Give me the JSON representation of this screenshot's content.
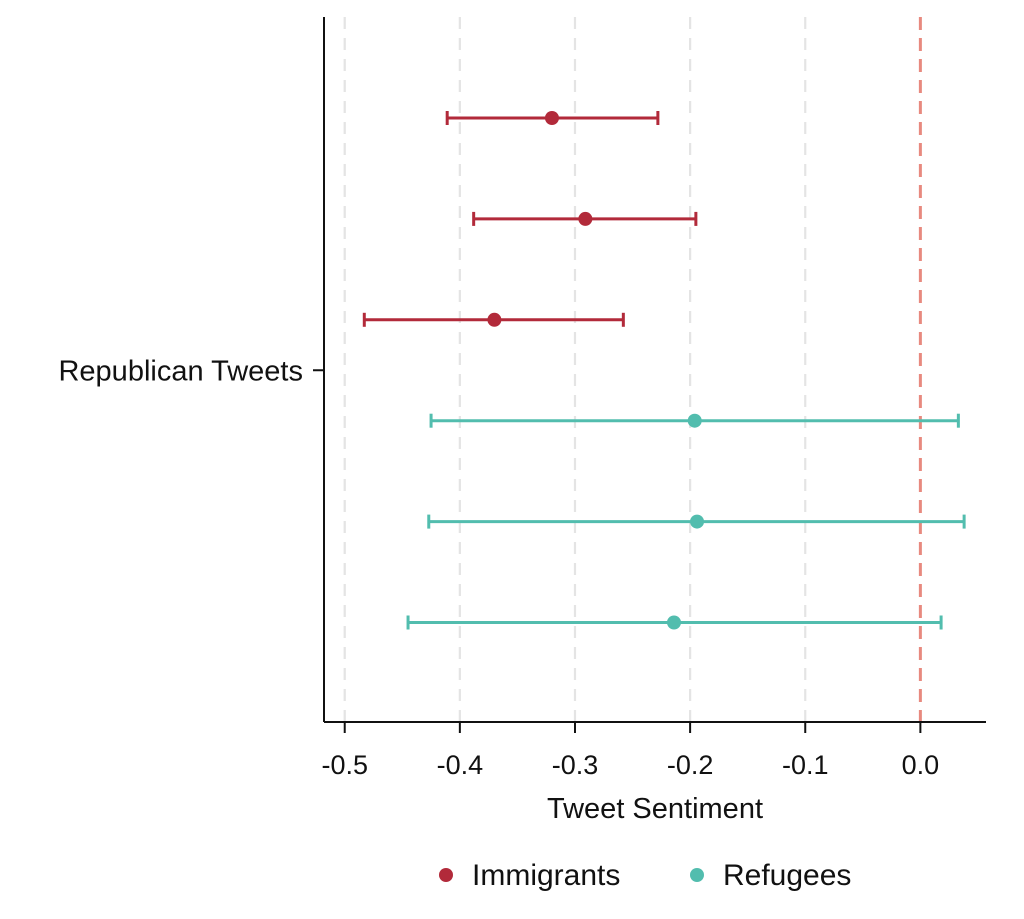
{
  "chart_data": {
    "type": "scatter",
    "subtype": "coefficient-plot-with-confidence-intervals",
    "title": "",
    "xlabel": "Tweet Sentiment",
    "ylabel": "",
    "xlim": [
      -0.518,
      0.057
    ],
    "xticks": [
      -0.5,
      -0.4,
      -0.3,
      -0.2,
      -0.1,
      0.0
    ],
    "xtick_labels": [
      "-0.5",
      "-0.4",
      "-0.3",
      "-0.2",
      "-0.1",
      "0.0"
    ],
    "y_category_label": "Republican Tweets",
    "vertical_grid": true,
    "grid_style": "dashed",
    "reference_line": {
      "x": 0.0,
      "style": "dashed",
      "color": "#e8897f"
    },
    "legend": {
      "position": "bottom",
      "entries": [
        "Immigrants",
        "Refugees"
      ]
    },
    "series": [
      {
        "name": "Immigrants",
        "color": "#b22a3a",
        "points": [
          {
            "estimate": -0.32,
            "lower": -0.411,
            "upper": -0.228
          },
          {
            "estimate": -0.291,
            "lower": -0.388,
            "upper": -0.195
          },
          {
            "estimate": -0.37,
            "lower": -0.483,
            "upper": -0.258
          }
        ]
      },
      {
        "name": "Refugees",
        "color": "#52bdae",
        "points": [
          {
            "estimate": -0.196,
            "lower": -0.425,
            "upper": 0.033
          },
          {
            "estimate": -0.194,
            "lower": -0.427,
            "upper": 0.038
          },
          {
            "estimate": -0.214,
            "lower": -0.445,
            "upper": 0.018
          }
        ]
      }
    ]
  }
}
